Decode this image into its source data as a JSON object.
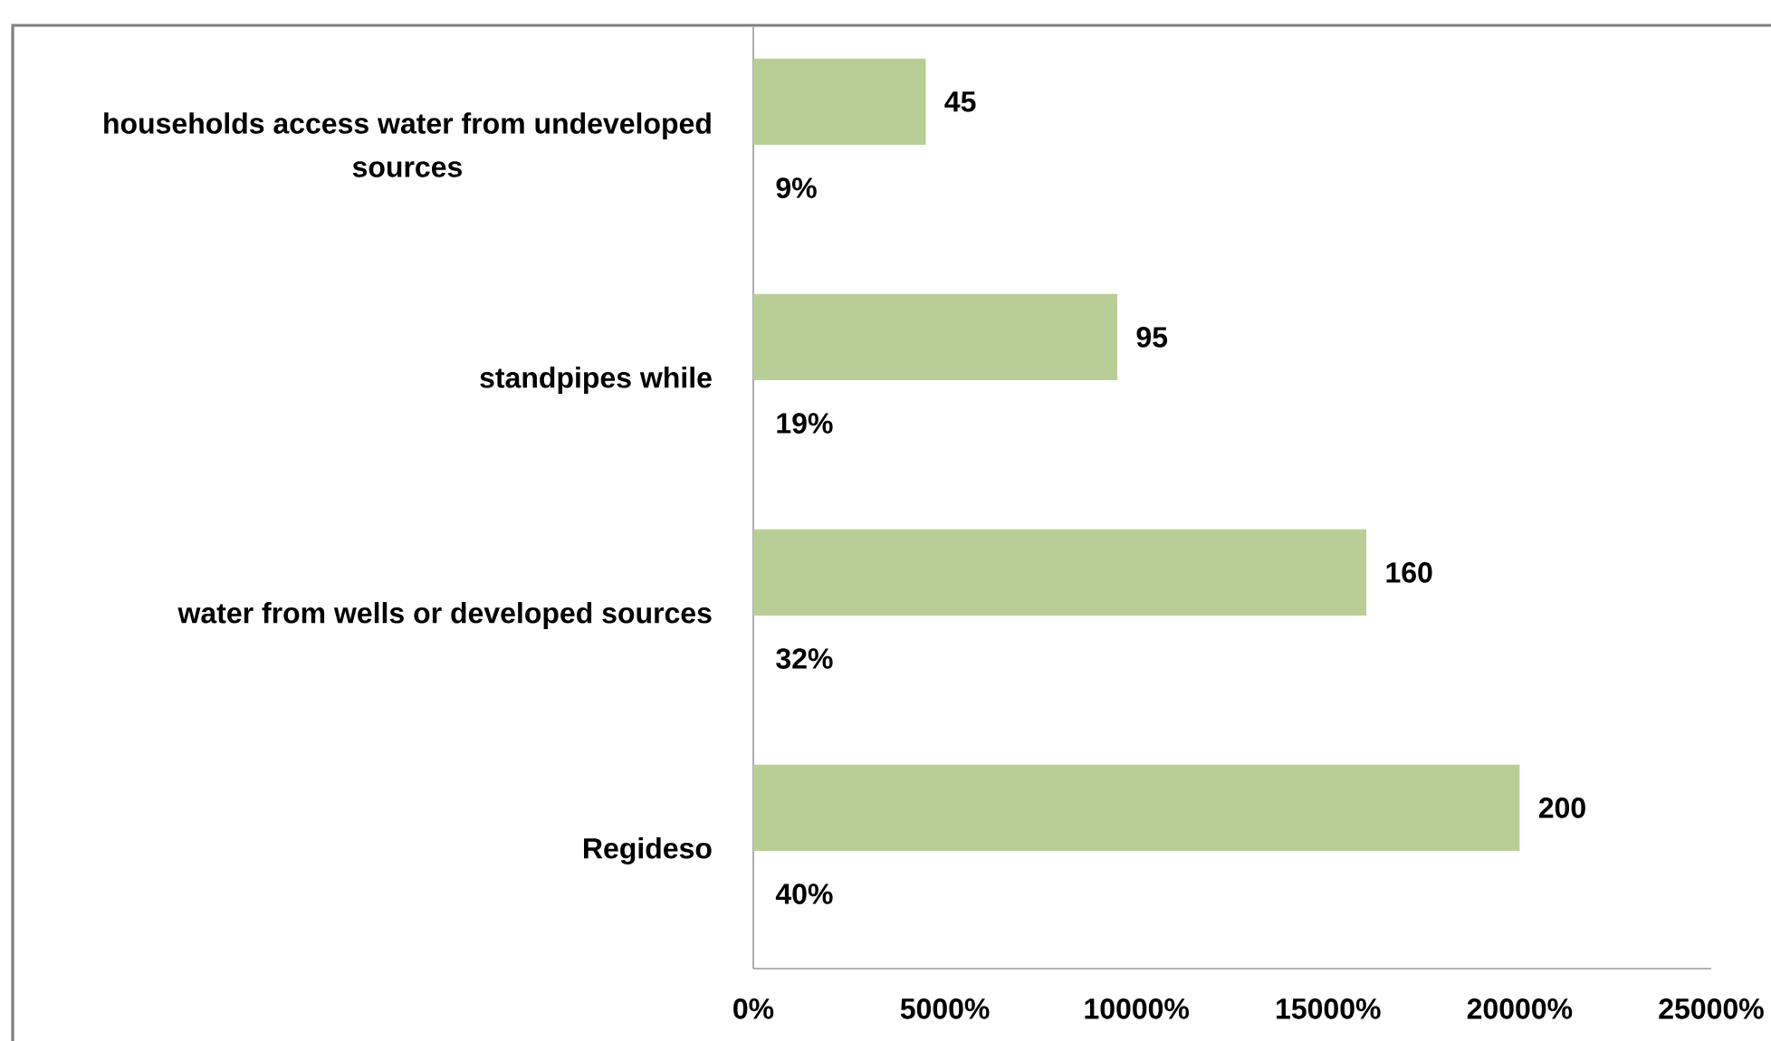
{
  "chart_data": {
    "type": "bar",
    "orientation": "horizontal",
    "categories": [
      "households access water from undeveloped sources",
      "standpipes while",
      "water from wells or developed sources",
      "Regideso"
    ],
    "values": [
      45,
      95,
      160,
      200
    ],
    "color": "#b9ce96",
    "data_labels": true,
    "xlim": [
      0,
      250
    ],
    "xticks": [
      {
        "value": 0,
        "label": "0%"
      },
      {
        "value": 50,
        "label": "5000%"
      },
      {
        "value": 100,
        "label": "10000%"
      },
      {
        "value": 150,
        "label": "15000%"
      },
      {
        "value": 200,
        "label": "20000%"
      },
      {
        "value": 250,
        "label": "25000%"
      }
    ],
    "annotations": [
      {
        "text": "9%",
        "y": "households access water from undeveloped sources"
      },
      {
        "text": "19%",
        "y": "standpipes while"
      },
      {
        "text": "32%",
        "y": "water from wells or developed sources"
      },
      {
        "text": "40%",
        "y": "Regideso"
      }
    ]
  }
}
